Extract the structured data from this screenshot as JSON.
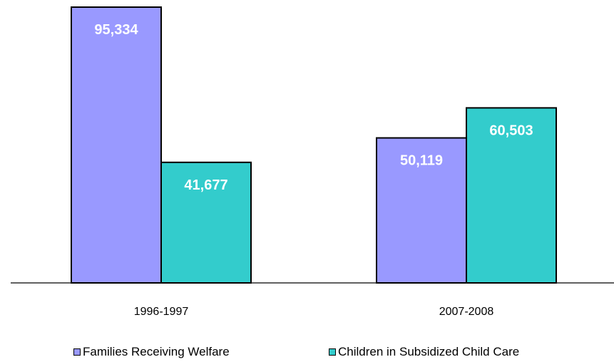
{
  "chart_data": {
    "type": "bar",
    "categories": [
      "1996-1997",
      "2007-2008"
    ],
    "series": [
      {
        "name": "Families Receiving Welfare",
        "values": [
          95334,
          50119
        ],
        "labels": [
          "95,334",
          "50,119"
        ],
        "color": "#9999ff"
      },
      {
        "name": "Children in Subsidized Child Care",
        "values": [
          41677,
          60503
        ],
        "labels": [
          "41,677",
          "60,503"
        ],
        "color": "#33cccc"
      }
    ],
    "ylim": [
      0,
      95334
    ],
    "grid": false,
    "legend_position": "bottom",
    "title": "",
    "xlabel": "",
    "ylabel": ""
  }
}
